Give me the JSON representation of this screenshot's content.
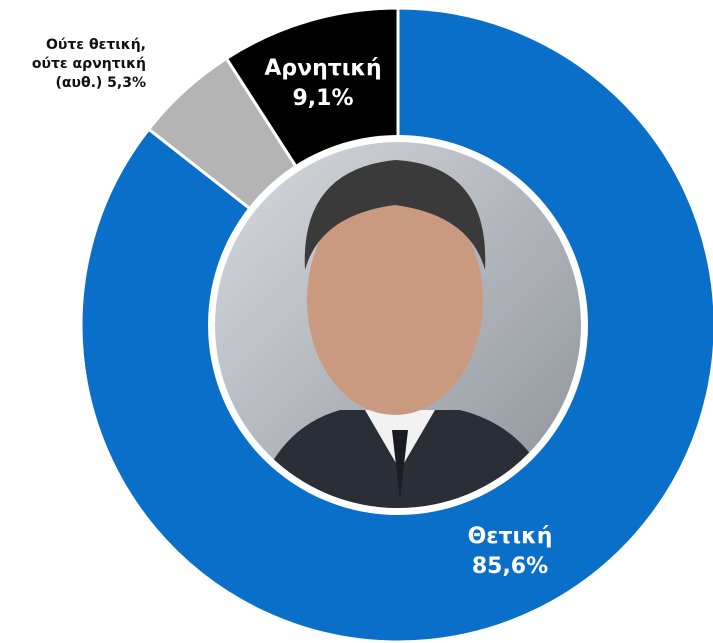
{
  "chart_data": {
    "type": "donut",
    "categories": [
      "Θετική",
      "Ούτε θετική, ούτε αρνητική (αυθ.)",
      "Αρνητική"
    ],
    "values": [
      85.6,
      5.3,
      9.1
    ],
    "value_labels": [
      "85,6%",
      "5,3%",
      "9,1%"
    ],
    "colors": [
      "#0a6fc8",
      "#b4b4b4",
      "#000000"
    ]
  }
}
